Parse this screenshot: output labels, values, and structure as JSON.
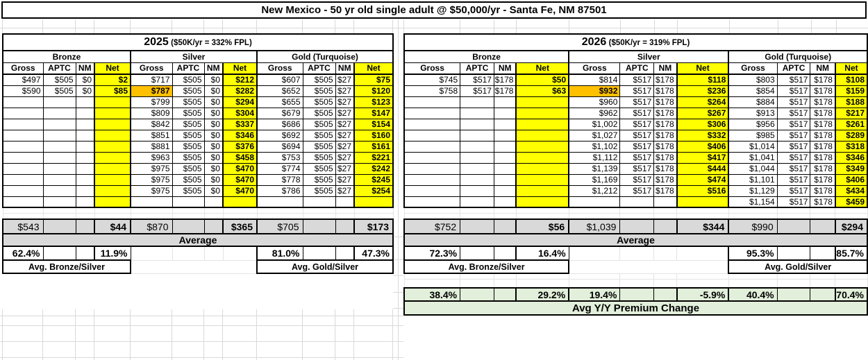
{
  "title": "New Mexico - 50 yr old single adult @ $50,000/yr - Santa Fe, NM 87501",
  "colors": {
    "net_column": "#FFFF00",
    "benchmark_cell": "#FFC000",
    "average_band": "#D9D9D9",
    "yoy_band": "#E2EFDA"
  },
  "tables": [
    {
      "year": "2025",
      "fpl_note": "($50K/yr = 332% FPL)",
      "tiers": [
        "Bronze",
        "Silver",
        "Gold (Turquoise)"
      ],
      "columns": [
        "Gross",
        "APTC",
        "NM",
        "Net"
      ],
      "rows": [
        [
          "$497",
          "$505",
          "$0",
          "$2",
          "$717",
          "$505",
          "$0",
          "$212",
          "$607",
          "$505",
          "$27",
          "$75"
        ],
        [
          "$590",
          "$505",
          "$0",
          "$85",
          "$787",
          "$505",
          "$0",
          "$282",
          "$652",
          "$505",
          "$27",
          "$120"
        ],
        [
          "",
          "",
          "",
          "",
          "$799",
          "$505",
          "$0",
          "$294",
          "$655",
          "$505",
          "$27",
          "$123"
        ],
        [
          "",
          "",
          "",
          "",
          "$809",
          "$505",
          "$0",
          "$304",
          "$679",
          "$505",
          "$27",
          "$147"
        ],
        [
          "",
          "",
          "",
          "",
          "$842",
          "$505",
          "$0",
          "$337",
          "$686",
          "$505",
          "$27",
          "$154"
        ],
        [
          "",
          "",
          "",
          "",
          "$851",
          "$505",
          "$0",
          "$346",
          "$692",
          "$505",
          "$27",
          "$160"
        ],
        [
          "",
          "",
          "",
          "",
          "$881",
          "$505",
          "$0",
          "$376",
          "$694",
          "$505",
          "$27",
          "$161"
        ],
        [
          "",
          "",
          "",
          "",
          "$963",
          "$505",
          "$0",
          "$458",
          "$753",
          "$505",
          "$27",
          "$221"
        ],
        [
          "",
          "",
          "",
          "",
          "$975",
          "$505",
          "$0",
          "$470",
          "$774",
          "$505",
          "$27",
          "$242"
        ],
        [
          "",
          "",
          "",
          "",
          "$975",
          "$505",
          "$0",
          "$470",
          "$778",
          "$505",
          "$27",
          "$245"
        ],
        [
          "",
          "",
          "",
          "",
          "$975",
          "$505",
          "$0",
          "$470",
          "$786",
          "$505",
          "$27",
          "$254"
        ],
        [
          "",
          "",
          "",
          "",
          "",
          "",
          "",
          "",
          "",
          "",
          "",
          ""
        ]
      ],
      "benchmark": {
        "row": 1,
        "col": 4
      },
      "average_values": [
        "$543",
        "",
        "",
        "$44",
        "$870",
        "",
        "",
        "$365",
        "$705",
        "",
        "",
        "$173"
      ],
      "average_label": "Average",
      "ratio_row": {
        "bronze": [
          "62.4%",
          "",
          "",
          "11.9%"
        ],
        "gold": [
          "81.0%",
          "",
          "",
          "47.3%"
        ]
      },
      "ratio_labels": {
        "bronze": "Avg. Bronze/Silver",
        "gold": "Avg. Gold/Silver"
      }
    },
    {
      "year": "2026",
      "fpl_note": "($50K/yr = 319% FPL)",
      "tiers": [
        "Bronze",
        "Silver",
        "Gold (Turquoise)"
      ],
      "columns": [
        "Gross",
        "APTC",
        "NM",
        "Net"
      ],
      "rows": [
        [
          "$745",
          "$517",
          "$178",
          "$50",
          "$814",
          "$517",
          "$178",
          "$118",
          "$803",
          "$517",
          "$178",
          "$108"
        ],
        [
          "$758",
          "$517",
          "$178",
          "$63",
          "$932",
          "$517",
          "$178",
          "$236",
          "$854",
          "$517",
          "$178",
          "$159"
        ],
        [
          "",
          "",
          "",
          "",
          "$960",
          "$517",
          "$178",
          "$264",
          "$884",
          "$517",
          "$178",
          "$188"
        ],
        [
          "",
          "",
          "",
          "",
          "$962",
          "$517",
          "$178",
          "$267",
          "$913",
          "$517",
          "$178",
          "$217"
        ],
        [
          "",
          "",
          "",
          "",
          "$1,002",
          "$517",
          "$178",
          "$306",
          "$956",
          "$517",
          "$178",
          "$261"
        ],
        [
          "",
          "",
          "",
          "",
          "$1,027",
          "$517",
          "$178",
          "$332",
          "$985",
          "$517",
          "$178",
          "$289"
        ],
        [
          "",
          "",
          "",
          "",
          "$1,102",
          "$517",
          "$178",
          "$406",
          "$1,014",
          "$517",
          "$178",
          "$318"
        ],
        [
          "",
          "",
          "",
          "",
          "$1,112",
          "$517",
          "$178",
          "$417",
          "$1,041",
          "$517",
          "$178",
          "$346"
        ],
        [
          "",
          "",
          "",
          "",
          "$1,139",
          "$517",
          "$178",
          "$444",
          "$1,044",
          "$517",
          "$178",
          "$349"
        ],
        [
          "",
          "",
          "",
          "",
          "$1,169",
          "$517",
          "$178",
          "$474",
          "$1,101",
          "$517",
          "$178",
          "$406"
        ],
        [
          "",
          "",
          "",
          "",
          "$1,212",
          "$517",
          "$178",
          "$516",
          "$1,129",
          "$517",
          "$178",
          "$434"
        ],
        [
          "",
          "",
          "",
          "",
          "",
          "",
          "",
          "",
          "$1,154",
          "$517",
          "$178",
          "$459"
        ]
      ],
      "benchmark": {
        "row": 1,
        "col": 4
      },
      "average_values": [
        "$752",
        "",
        "",
        "$56",
        "$1,039",
        "",
        "",
        "$344",
        "$990",
        "",
        "",
        "$294"
      ],
      "average_label": "Average",
      "ratio_row": {
        "bronze": [
          "72.3%",
          "",
          "",
          "16.4%"
        ],
        "gold": [
          "95.3%",
          "",
          "",
          "85.7%"
        ]
      },
      "ratio_labels": {
        "bronze": "Avg. Bronze/Silver",
        "gold": "Avg. Gold/Silver"
      },
      "yoy_values": [
        "38.4%",
        "",
        "",
        "29.2%",
        "19.4%",
        "",
        "",
        "-5.9%",
        "40.4%",
        "",
        "",
        "70.4%"
      ],
      "yoy_label": "Avg Y/Y Premium Change"
    }
  ]
}
